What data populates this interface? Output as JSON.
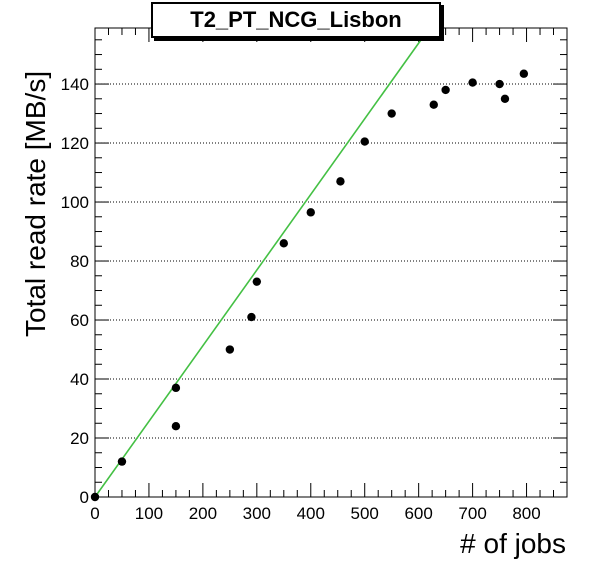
{
  "chart_data": {
    "type": "scatter",
    "title": "T2_PT_NCG_Lisbon",
    "xlabel": "# of jobs",
    "ylabel": "Total read rate [MB/s]",
    "xlim": [
      0,
      875
    ],
    "ylim": [
      0,
      159
    ],
    "xticks": [
      0,
      100,
      200,
      300,
      400,
      500,
      600,
      700,
      800
    ],
    "yticks": [
      0,
      20,
      40,
      60,
      80,
      100,
      120,
      140
    ],
    "grid": "horizontal dotted",
    "series": [
      {
        "points": [
          {
            "x": 0,
            "y": 0
          },
          {
            "x": 50,
            "y": 12
          },
          {
            "x": 150,
            "y": 24
          },
          {
            "x": 150,
            "y": 37
          },
          {
            "x": 250,
            "y": 50
          },
          {
            "x": 290,
            "y": 61
          },
          {
            "x": 300,
            "y": 73
          },
          {
            "x": 350,
            "y": 86
          },
          {
            "x": 400,
            "y": 96.5
          },
          {
            "x": 455,
            "y": 107
          },
          {
            "x": 500,
            "y": 120.5
          },
          {
            "x": 550,
            "y": 130
          },
          {
            "x": 628,
            "y": 133
          },
          {
            "x": 650,
            "y": 138
          },
          {
            "x": 700,
            "y": 140.5
          },
          {
            "x": 750,
            "y": 140
          },
          {
            "x": 760,
            "y": 135
          },
          {
            "x": 795,
            "y": 143.5
          }
        ],
        "color": "#000000"
      }
    ],
    "fit_line": {
      "from": [
        0,
        0
      ],
      "to": [
        620,
        159
      ],
      "color": "#44c044"
    }
  }
}
